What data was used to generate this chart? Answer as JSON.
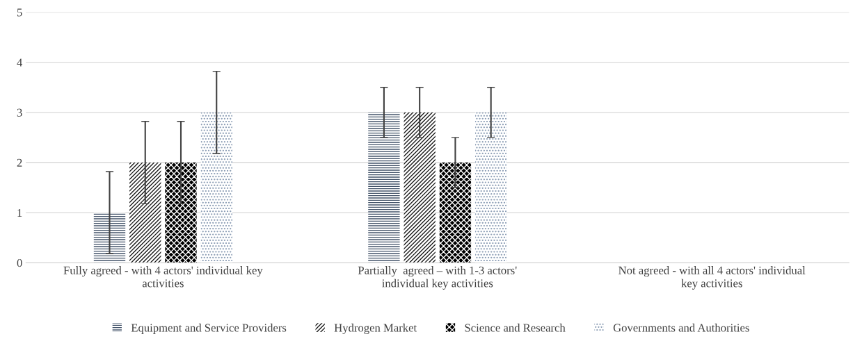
{
  "chart_data": {
    "type": "bar",
    "categories": [
      "Fully agreed - with 4 actors' individual key activities",
      "Partially  agreed – with 1-3 actors' individual key activities",
      "Not agreed - with all 4 actors' individual key activities"
    ],
    "series": [
      {
        "name": "Equipment and Service Providers",
        "color": "#44546a",
        "values": [
          1,
          3,
          0
        ],
        "errors": [
          0.82,
          0.5,
          null
        ]
      },
      {
        "name": "Hydrogen Market",
        "color": "#1a1a1a",
        "values": [
          2,
          3,
          0
        ],
        "errors": [
          0.82,
          0.5,
          null
        ]
      },
      {
        "name": "Science and Research",
        "color": "#000000",
        "values": [
          2,
          2,
          0
        ],
        "errors": [
          0.82,
          0.5,
          null
        ]
      },
      {
        "name": "Governments and Authorities",
        "color": "#8497b0",
        "values": [
          3,
          3,
          0
        ],
        "errors": [
          0.82,
          0.5,
          null
        ]
      }
    ],
    "ylim": [
      0,
      5
    ],
    "yticks": [
      0,
      1,
      2,
      3,
      4,
      5
    ],
    "grid": "y",
    "legend": "bottom"
  }
}
